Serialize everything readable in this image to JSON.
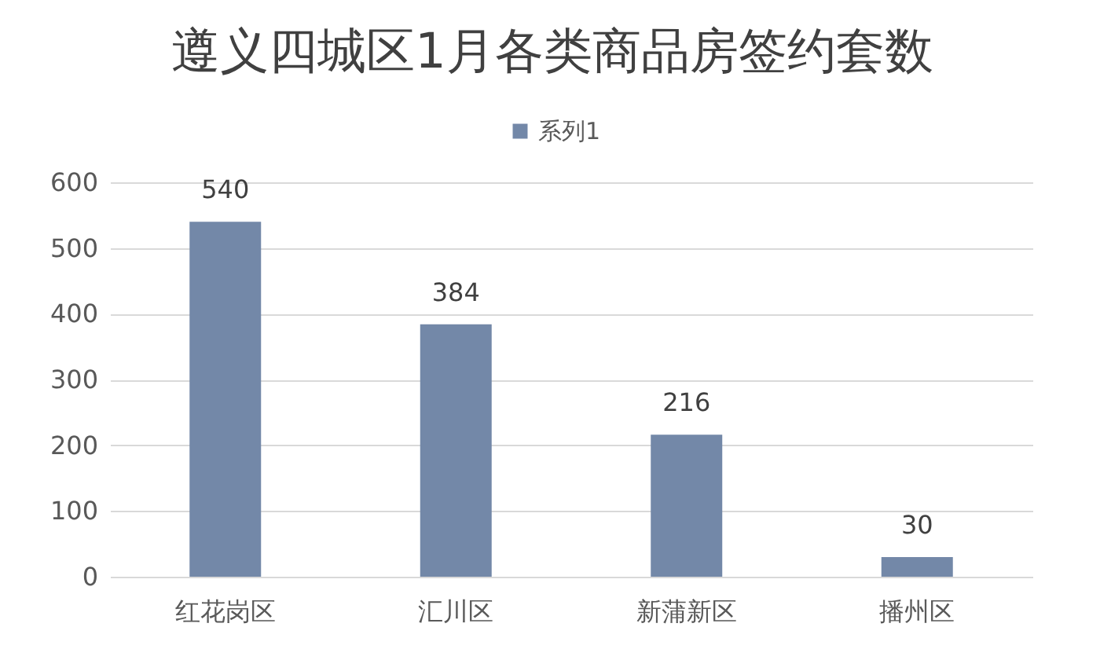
{
  "chart_data": {
    "type": "bar",
    "title": "遵义四城区1月各类商品房签约套数",
    "categories": [
      "红花岗区",
      "汇川区",
      "新蒲新区",
      "播州区"
    ],
    "series": [
      {
        "name": "系列1",
        "color": "#7388a8",
        "values": [
          540,
          384,
          216,
          30
        ]
      }
    ],
    "ylim": [
      0,
      600
    ],
    "yticks": [
      0,
      100,
      200,
      300,
      400,
      500,
      600
    ],
    "grid": "y",
    "legend": "top",
    "data_labels": true
  }
}
